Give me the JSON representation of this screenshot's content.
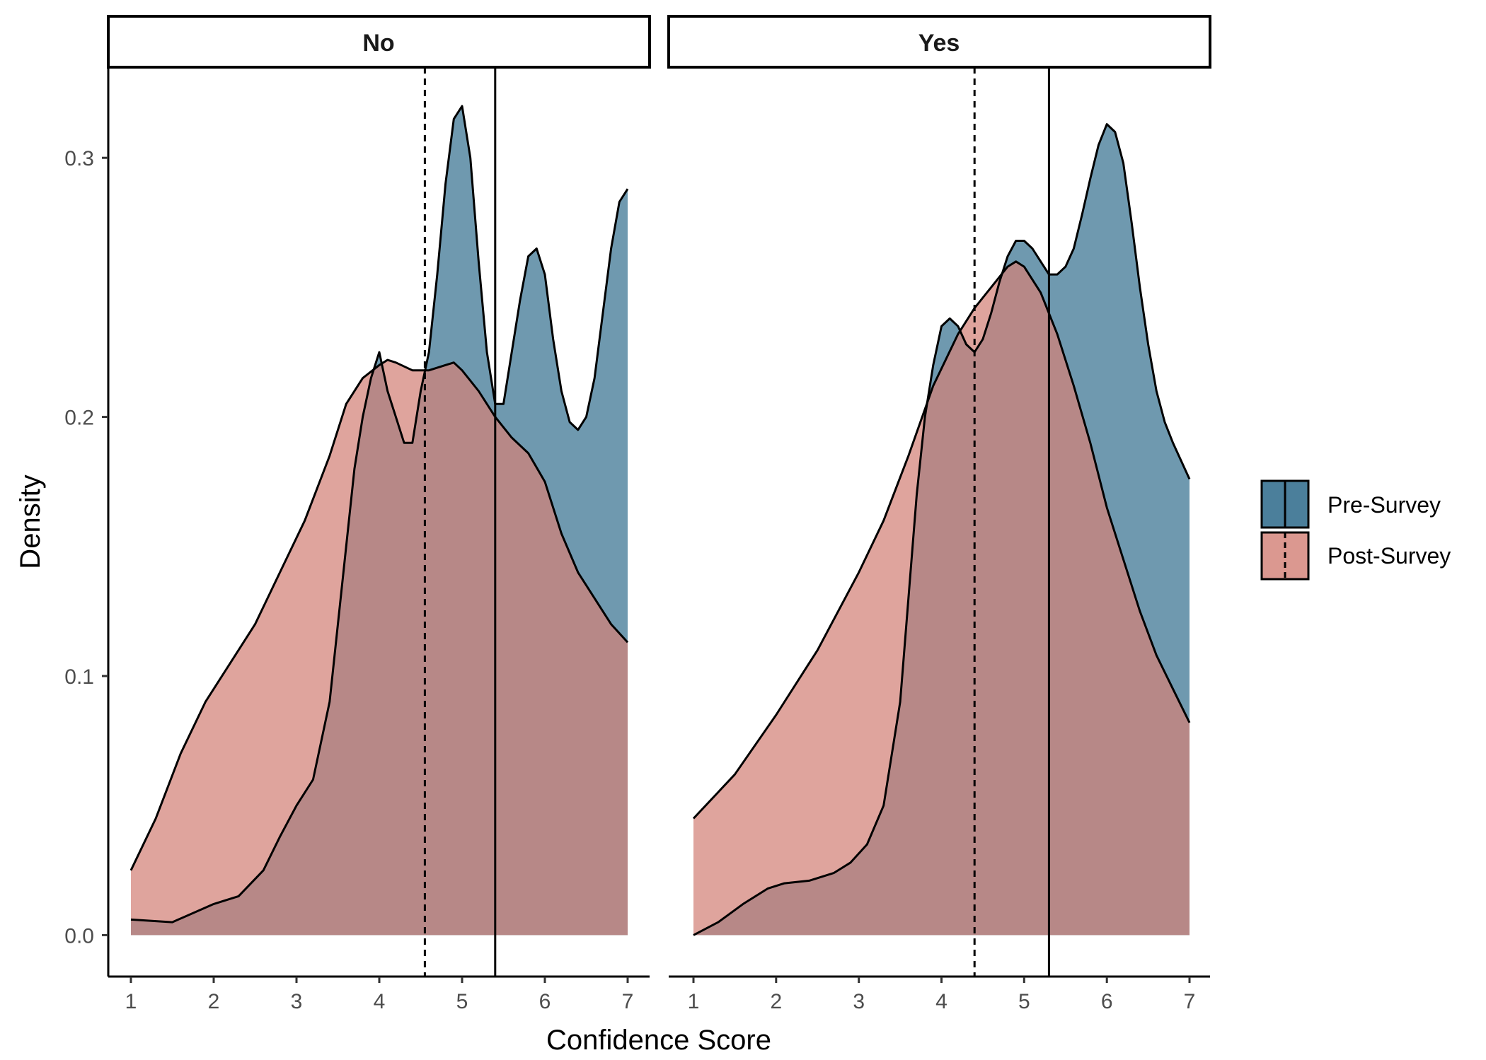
{
  "chart_data": {
    "type": "area",
    "xlabel": "Confidence Score",
    "ylabel": "Density",
    "xlim": [
      1,
      7
    ],
    "ylim": [
      -0.016,
      0.335
    ],
    "x_ticks": [
      "1",
      "2",
      "3",
      "4",
      "5",
      "6",
      "7"
    ],
    "y_ticks": [
      "0.0",
      "0.1",
      "0.2",
      "0.3"
    ],
    "grid": false,
    "legend_position": "right",
    "legend": [
      {
        "name": "Pre-Survey",
        "color": "#4b7f9b",
        "line": "solid"
      },
      {
        "name": "Post-Survey",
        "color": "#d38177",
        "line": "dashed"
      }
    ],
    "overlap_color": "#986a6a",
    "panels": [
      {
        "label": "No",
        "vlines": [
          {
            "series": "Pre-Survey",
            "x": 5.4,
            "style": "solid"
          },
          {
            "series": "Post-Survey",
            "x": 4.55,
            "style": "dashed"
          }
        ],
        "series": [
          {
            "name": "Pre-Survey",
            "x": [
              1,
              1.5,
              2,
              2.3,
              2.6,
              2.8,
              3,
              3.2,
              3.4,
              3.6,
              3.7,
              3.8,
              3.9,
              4,
              4.1,
              4.2,
              4.3,
              4.4,
              4.5,
              4.6,
              4.7,
              4.8,
              4.9,
              5,
              5.1,
              5.2,
              5.3,
              5.4,
              5.5,
              5.6,
              5.7,
              5.8,
              5.9,
              6,
              6.1,
              6.2,
              6.3,
              6.4,
              6.5,
              6.6,
              6.7,
              6.8,
              6.9,
              7
            ],
            "y": [
              0.006,
              0.005,
              0.012,
              0.015,
              0.025,
              0.038,
              0.05,
              0.06,
              0.09,
              0.15,
              0.18,
              0.2,
              0.215,
              0.225,
              0.21,
              0.2,
              0.19,
              0.19,
              0.21,
              0.225,
              0.255,
              0.29,
              0.315,
              0.32,
              0.3,
              0.26,
              0.225,
              0.205,
              0.205,
              0.225,
              0.245,
              0.262,
              0.265,
              0.255,
              0.23,
              0.21,
              0.198,
              0.195,
              0.2,
              0.215,
              0.24,
              0.265,
              0.283,
              0.288
            ]
          },
          {
            "name": "Post-Survey",
            "x": [
              1,
              1.3,
              1.6,
              1.9,
              2.2,
              2.5,
              2.8,
              3.1,
              3.4,
              3.6,
              3.8,
              4,
              4.1,
              4.2,
              4.4,
              4.6,
              4.8,
              4.9,
              5,
              5.2,
              5.4,
              5.6,
              5.8,
              6,
              6.2,
              6.4,
              6.6,
              6.8,
              7
            ],
            "y": [
              0.025,
              0.045,
              0.07,
              0.09,
              0.105,
              0.12,
              0.14,
              0.16,
              0.185,
              0.205,
              0.215,
              0.22,
              0.222,
              0.221,
              0.218,
              0.218,
              0.22,
              0.221,
              0.218,
              0.21,
              0.2,
              0.192,
              0.186,
              0.175,
              0.155,
              0.14,
              0.13,
              0.12,
              0.113
            ]
          }
        ]
      },
      {
        "label": "Yes",
        "vlines": [
          {
            "series": "Pre-Survey",
            "x": 5.3,
            "style": "solid"
          },
          {
            "series": "Post-Survey",
            "x": 4.4,
            "style": "dashed"
          }
        ],
        "series": [
          {
            "name": "Pre-Survey",
            "x": [
              1,
              1.3,
              1.6,
              1.9,
              2.1,
              2.4,
              2.7,
              2.9,
              3.1,
              3.3,
              3.5,
              3.6,
              3.7,
              3.8,
              3.9,
              4,
              4.1,
              4.2,
              4.3,
              4.4,
              4.5,
              4.6,
              4.7,
              4.8,
              4.9,
              5,
              5.1,
              5.2,
              5.3,
              5.4,
              5.5,
              5.6,
              5.7,
              5.8,
              5.9,
              6,
              6.1,
              6.2,
              6.3,
              6.4,
              6.5,
              6.6,
              6.7,
              6.8,
              6.9,
              7
            ],
            "y": [
              0,
              0.005,
              0.012,
              0.018,
              0.02,
              0.021,
              0.024,
              0.028,
              0.035,
              0.05,
              0.09,
              0.13,
              0.17,
              0.2,
              0.22,
              0.235,
              0.238,
              0.235,
              0.228,
              0.225,
              0.23,
              0.24,
              0.252,
              0.262,
              0.268,
              0.268,
              0.265,
              0.26,
              0.255,
              0.255,
              0.258,
              0.265,
              0.278,
              0.292,
              0.305,
              0.313,
              0.31,
              0.298,
              0.275,
              0.25,
              0.228,
              0.21,
              0.198,
              0.19,
              0.183,
              0.176
            ]
          },
          {
            "name": "Post-Survey",
            "x": [
              1,
              1.5,
              2,
              2.5,
              3,
              3.3,
              3.6,
              3.9,
              4.2,
              4.4,
              4.6,
              4.8,
              4.9,
              5,
              5.2,
              5.4,
              5.6,
              5.8,
              6,
              6.2,
              6.4,
              6.6,
              6.8,
              7
            ],
            "y": [
              0.045,
              0.062,
              0.085,
              0.11,
              0.14,
              0.16,
              0.185,
              0.212,
              0.232,
              0.242,
              0.25,
              0.258,
              0.26,
              0.258,
              0.248,
              0.232,
              0.212,
              0.19,
              0.165,
              0.145,
              0.125,
              0.108,
              0.095,
              0.082
            ]
          }
        ]
      }
    ]
  }
}
